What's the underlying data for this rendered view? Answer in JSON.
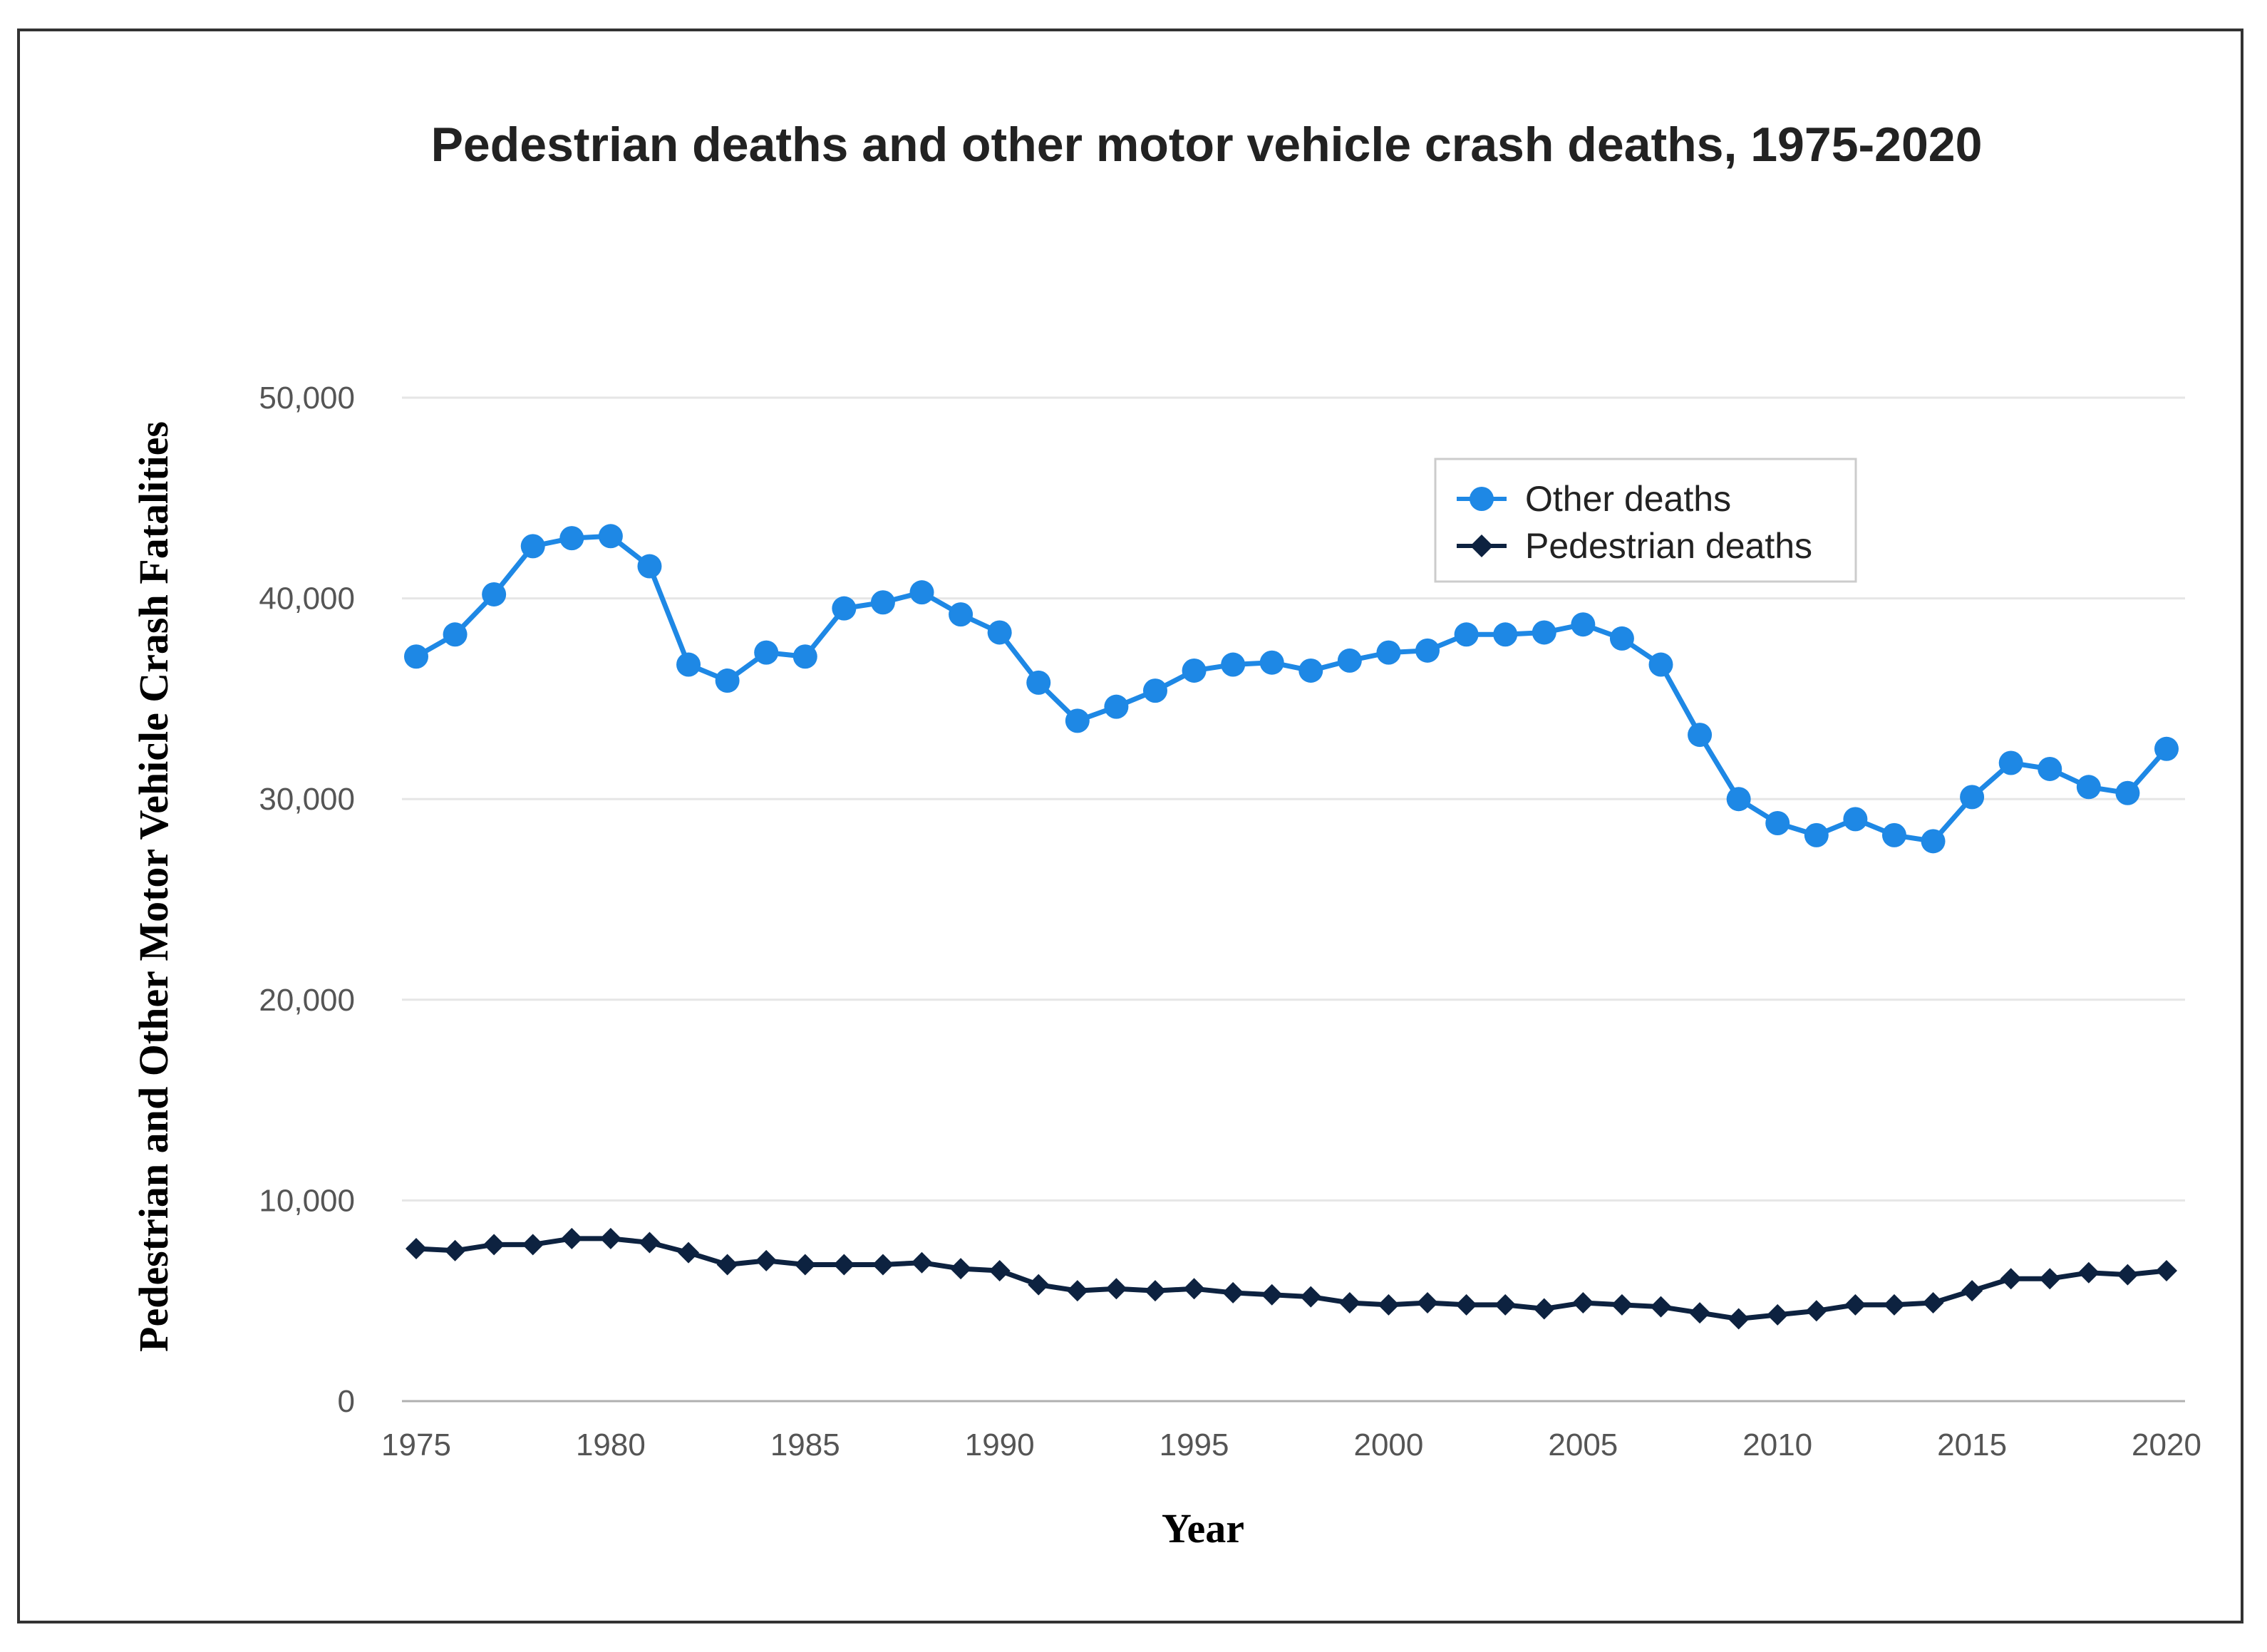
{
  "chart_data": {
    "type": "line",
    "title": "Pedestrian deaths and other motor vehicle crash deaths, 1975-2020",
    "xlabel": "Year",
    "ylabel": "Pedestrian and Other Motor Vehicle Crash Fatalities",
    "x": [
      1975,
      1976,
      1977,
      1978,
      1979,
      1980,
      1981,
      1982,
      1983,
      1984,
      1985,
      1986,
      1987,
      1988,
      1989,
      1990,
      1991,
      1992,
      1993,
      1994,
      1995,
      1996,
      1997,
      1998,
      1999,
      2000,
      2001,
      2002,
      2003,
      2004,
      2005,
      2006,
      2007,
      2008,
      2009,
      2010,
      2011,
      2012,
      2013,
      2014,
      2015,
      2016,
      2017,
      2018,
      2019,
      2020
    ],
    "xlim": [
      1975,
      2020
    ],
    "x_ticks": [
      1975,
      1980,
      1985,
      1990,
      1995,
      2000,
      2005,
      2010,
      2015,
      2020
    ],
    "x_tick_labels": [
      "1975",
      "1980",
      "1985",
      "1990",
      "1995",
      "2000",
      "2005",
      "2010",
      "2015",
      "2020"
    ],
    "ylim": [
      0,
      50000
    ],
    "y_ticks": [
      0,
      10000,
      20000,
      30000,
      40000,
      50000
    ],
    "y_tick_labels": [
      "0",
      "10,000",
      "20,000",
      "30,000",
      "40,000",
      "50,000"
    ],
    "grid": true,
    "legend_position": "top-right",
    "series": [
      {
        "name": "Other deaths",
        "color": "#1e88e5",
        "marker": "circle",
        "values": [
          37100,
          38200,
          40200,
          42600,
          43000,
          43100,
          41600,
          36700,
          35900,
          37300,
          37100,
          39500,
          39800,
          40300,
          39200,
          38300,
          35800,
          33900,
          34600,
          35400,
          36400,
          36700,
          36800,
          36400,
          36900,
          37300,
          37400,
          38200,
          38200,
          38300,
          38700,
          38000,
          36700,
          33200,
          30000,
          28800,
          28200,
          29000,
          28200,
          27900,
          30100,
          31800,
          31500,
          30600,
          30300,
          32500
        ]
      },
      {
        "name": "Pedestrian deaths",
        "color": "#0d2240",
        "marker": "diamond",
        "values": [
          7600,
          7500,
          7800,
          7800,
          8100,
          8100,
          7900,
          7400,
          6800,
          7000,
          6800,
          6800,
          6800,
          6900,
          6600,
          6500,
          5800,
          5500,
          5600,
          5500,
          5600,
          5400,
          5300,
          5200,
          4900,
          4800,
          4900,
          4800,
          4800,
          4600,
          4900,
          4800,
          4700,
          4400,
          4100,
          4300,
          4500,
          4800,
          4800,
          4900,
          5500,
          6100,
          6100,
          6400,
          6300,
          6500
        ]
      }
    ]
  }
}
